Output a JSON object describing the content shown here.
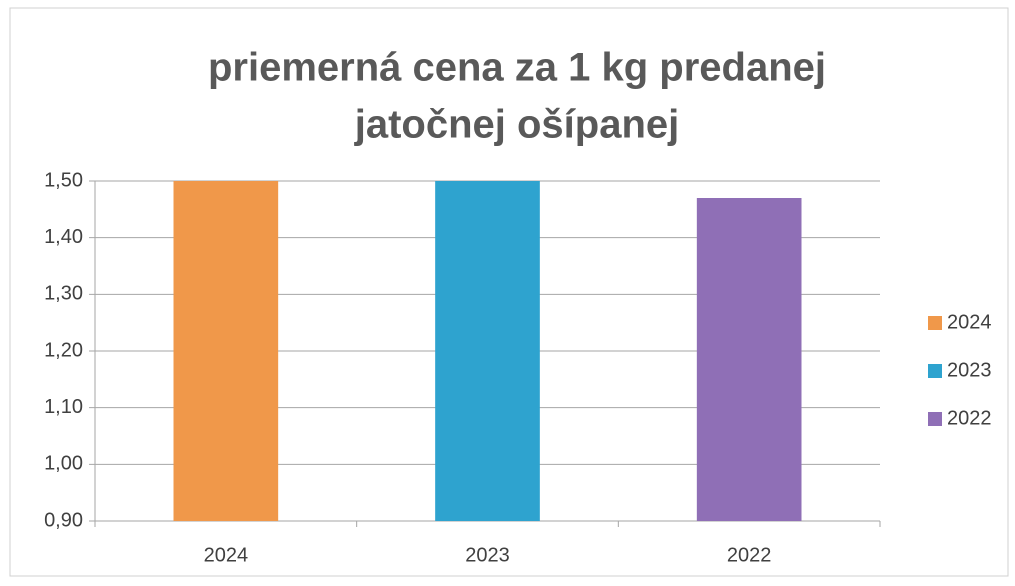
{
  "chart_data": {
    "type": "bar",
    "title": [
      "priemerná cena za 1 kg predanej",
      "jatočnej ošípanej"
    ],
    "categories": [
      "2024",
      "2023",
      "2022"
    ],
    "values": [
      1.5,
      1.5,
      1.47
    ],
    "colors": [
      "#f0984a",
      "#2ea3cf",
      "#8f6fb6"
    ],
    "ylim": [
      0.9,
      1.5
    ],
    "yticks": [
      {
        "value": 0.9,
        "label": "0,90"
      },
      {
        "value": 1.0,
        "label": "1,00"
      },
      {
        "value": 1.1,
        "label": "1,10"
      },
      {
        "value": 1.2,
        "label": "1,20"
      },
      {
        "value": 1.3,
        "label": "1,30"
      },
      {
        "value": 1.4,
        "label": "1,40"
      },
      {
        "value": 1.5,
        "label": "1,50"
      }
    ],
    "grid": true,
    "legend": "right"
  }
}
